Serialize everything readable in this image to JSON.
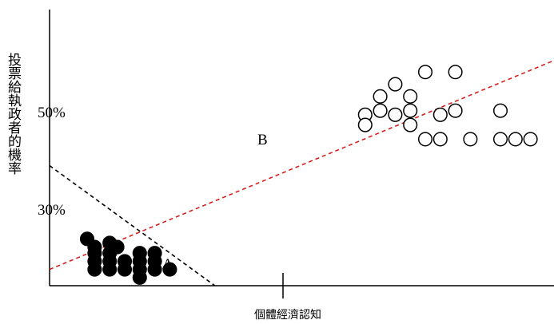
{
  "chart_data": {
    "type": "scatter",
    "title": "",
    "ylabel": "投票給執政者的機率",
    "xlabel": "個體經濟認知",
    "ytick_labels": [
      "50%",
      "30%"
    ],
    "line_labels": [
      "A",
      "B"
    ],
    "series": [
      {
        "style": "filled",
        "color": "#000000",
        "points": [
          [
            100,
            23
          ],
          [
            120,
            19
          ],
          [
            160,
            21
          ],
          [
            180,
            19
          ],
          [
            120,
            16
          ],
          [
            160,
            16
          ],
          [
            240,
            16
          ],
          [
            280,
            16
          ],
          [
            120,
            12
          ],
          [
            160,
            12
          ],
          [
            200,
            12
          ],
          [
            240,
            12
          ],
          [
            280,
            12
          ],
          [
            120,
            8
          ],
          [
            160,
            8
          ],
          [
            200,
            8
          ],
          [
            240,
            8
          ],
          [
            280,
            8
          ],
          [
            320,
            8
          ],
          [
            240,
            4
          ]
        ]
      },
      {
        "style": "hollow",
        "color": "#000000",
        "points": [
          [
            1000,
            105
          ],
          [
            1080,
            105
          ],
          [
            920,
            99
          ],
          [
            880,
            93
          ],
          [
            960,
            93
          ],
          [
            880,
            86
          ],
          [
            960,
            86
          ],
          [
            840,
            84
          ],
          [
            920,
            84
          ],
          [
            1040,
            84
          ],
          [
            1080,
            86
          ],
          [
            1200,
            86
          ],
          [
            840,
            79
          ],
          [
            960,
            79
          ],
          [
            1000,
            72
          ],
          [
            1040,
            72
          ],
          [
            1120,
            72
          ],
          [
            1200,
            72
          ],
          [
            1240,
            72
          ],
          [
            1280,
            72
          ]
        ]
      }
    ],
    "lines": [
      {
        "name": "B",
        "color": "#d62020",
        "dash": "dashed",
        "from": [
          0,
          8
        ],
        "to": [
          1360,
          112
        ]
      },
      {
        "name": "A",
        "color": "#000000",
        "dash": "dashed",
        "from": [
          0,
          59
        ],
        "to": [
          440,
          0
        ]
      }
    ]
  }
}
